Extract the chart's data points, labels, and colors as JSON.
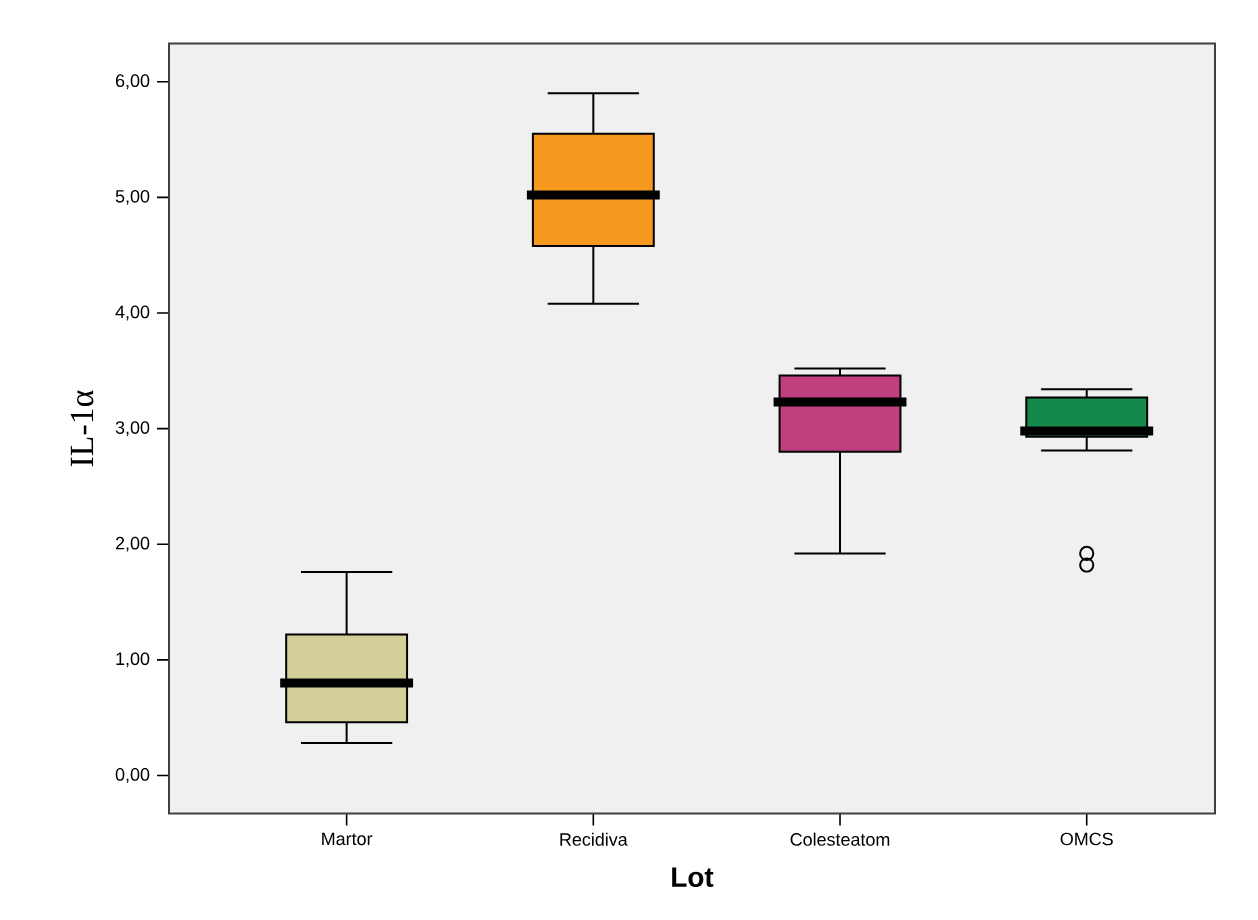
{
  "chart_data": {
    "type": "box",
    "xlabel": "Lot",
    "ylabel": "IL-1α",
    "categories": [
      "Martor",
      "Recidiva",
      "Colesteatom",
      "OMCS"
    ],
    "colors": [
      "#d3cf9b",
      "#f7981f",
      "#bf3f7f",
      "#14894a"
    ],
    "boxes": [
      {
        "low": 0.28,
        "q1": 0.46,
        "median": 0.8,
        "q3": 1.22,
        "high": 1.76
      },
      {
        "low": 4.08,
        "q1": 4.58,
        "median": 5.02,
        "q3": 5.55,
        "high": 5.9
      },
      {
        "low": 1.92,
        "q1": 2.8,
        "median": 3.23,
        "q3": 3.46,
        "high": 3.52
      },
      {
        "low": 2.81,
        "q1": 2.93,
        "median": 2.98,
        "q3": 3.27,
        "high": 3.34,
        "outliers": [
          1.92,
          1.82
        ]
      }
    ],
    "ylim": [
      -0.33,
      6.33
    ],
    "yticks": [
      {
        "value": 0,
        "label": "0,00"
      },
      {
        "value": 1,
        "label": "1,00"
      },
      {
        "value": 2,
        "label": "2,00"
      },
      {
        "value": 3,
        "label": "3,00"
      },
      {
        "value": 4,
        "label": "4,00"
      },
      {
        "value": 5,
        "label": "5,00"
      },
      {
        "value": 6,
        "label": "6,00"
      }
    ],
    "grid": false
  }
}
